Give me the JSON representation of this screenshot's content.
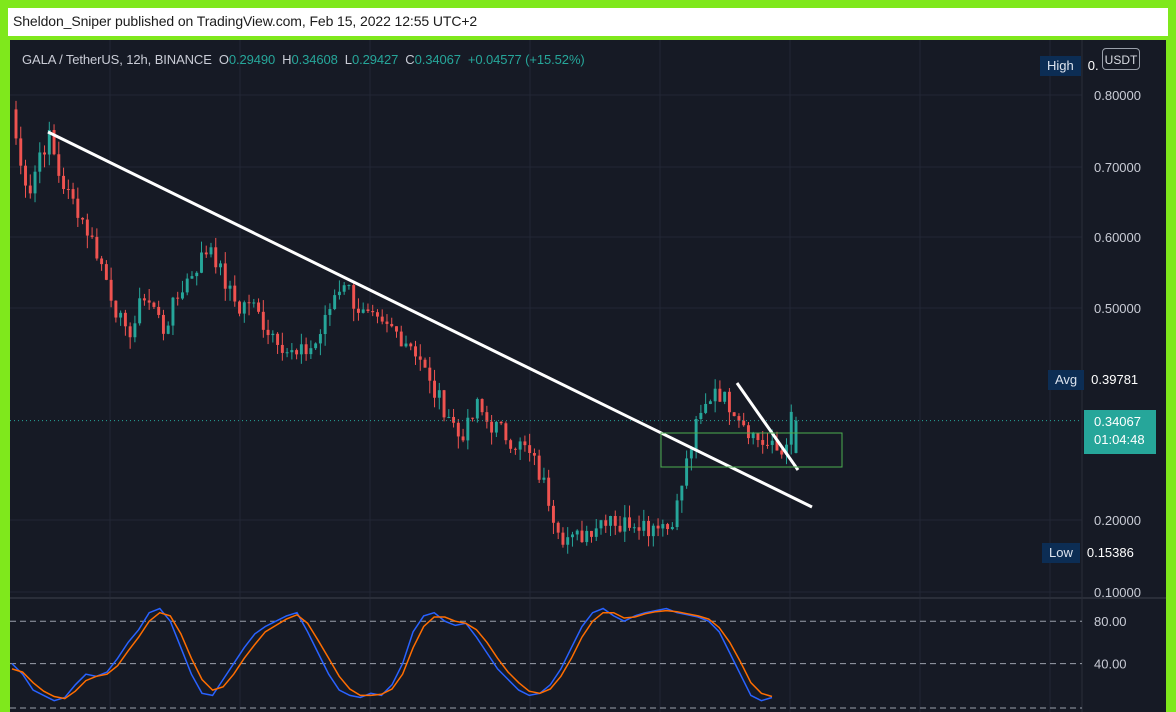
{
  "header": {
    "text": "Sheldon_Sniper published on TradingView.com, Feb 15, 2022 12:55 UTC+2"
  },
  "legend": {
    "symbol": "GALA / TetherUS, 12h, BINANCE",
    "o_label": "O",
    "o": "0.29490",
    "h_label": "H",
    "h": "0.34608",
    "l_label": "L",
    "l": "0.29427",
    "c_label": "C",
    "c": "0.34067",
    "change": "+0.04577 (+15.52%)"
  },
  "currency_button": "USDT",
  "markers": {
    "high_label": "High",
    "high_value": "0.",
    "avg_label": "Avg",
    "avg_value": "0.39781",
    "low_label": "Low",
    "low_value": "0.15386",
    "last_price": "0.34067",
    "countdown": "01:04:48"
  },
  "colors": {
    "up": "#26a69a",
    "down": "#ef5350",
    "background": "#161a25",
    "stoch_k": "#2962ff",
    "stoch_d": "#ff6d00",
    "frame": "#7fe81c"
  },
  "chart_data": [
    {
      "type": "candlestick",
      "symbol": "GALA / TetherUS",
      "interval": "12h",
      "exchange": "BINANCE",
      "y_ticks": [
        "0.80000",
        "0.70000",
        "0.60000",
        "0.50000",
        "0.20000",
        "0.10000"
      ],
      "ylim": [
        0.09,
        0.84
      ],
      "last": {
        "open": 0.2949,
        "high": 0.34608,
        "low": 0.29427,
        "close": 0.34067
      },
      "high_marker": 0.84,
      "avg": 0.39781,
      "low": 0.15386,
      "path_closes": [
        0.78,
        0.7,
        0.67,
        0.72,
        0.74,
        0.69,
        0.66,
        0.64,
        0.61,
        0.58,
        0.54,
        0.5,
        0.46,
        0.48,
        0.52,
        0.5,
        0.47,
        0.5,
        0.53,
        0.55,
        0.57,
        0.59,
        0.55,
        0.52,
        0.5,
        0.51,
        0.49,
        0.47,
        0.46,
        0.44,
        0.43,
        0.44,
        0.45,
        0.48,
        0.52,
        0.54,
        0.51,
        0.49,
        0.48,
        0.47,
        0.47,
        0.46,
        0.45,
        0.43,
        0.39,
        0.37,
        0.35,
        0.32,
        0.33,
        0.36,
        0.34,
        0.33,
        0.32,
        0.31,
        0.3,
        0.28,
        0.25,
        0.21,
        0.18,
        0.17,
        0.18,
        0.19,
        0.2,
        0.21,
        0.19,
        0.2,
        0.2,
        0.19,
        0.2,
        0.19,
        0.22,
        0.28,
        0.33,
        0.36,
        0.39,
        0.37,
        0.36,
        0.34,
        0.32,
        0.31,
        0.3,
        0.295,
        0.341
      ],
      "trendlines": [
        {
          "from": [
            0.02,
            0.75
          ],
          "to": [
            0.69,
            0.22
          ]
        },
        {
          "from": [
            0.625,
            0.39
          ],
          "to": [
            0.675,
            0.28
          ]
        }
      ]
    },
    {
      "type": "line",
      "name": "stochastic",
      "y_ticks": [
        "80.00",
        "40.00"
      ],
      "ylim": [
        0,
        100
      ],
      "series": [
        {
          "values": [
            40,
            30,
            15,
            10,
            5,
            8,
            20,
            30,
            28,
            32,
            45,
            60,
            72,
            88,
            92,
            80,
            55,
            30,
            12,
            10,
            25,
            40,
            55,
            68,
            75,
            80,
            85,
            88,
            70,
            50,
            30,
            15,
            10,
            8,
            12,
            10,
            20,
            40,
            70,
            85,
            88,
            80,
            76,
            78,
            65,
            50,
            35,
            25,
            15,
            10,
            12,
            20,
            35,
            55,
            75,
            88,
            92,
            85,
            80,
            85,
            88,
            90,
            92,
            88,
            86,
            84,
            80,
            70,
            50,
            30,
            10,
            5,
            8
          ]
        },
        {
          "values": [
            35,
            32,
            22,
            14,
            9,
            7,
            14,
            24,
            28,
            30,
            38,
            52,
            65,
            80,
            88,
            85,
            68,
            45,
            25,
            15,
            18,
            30,
            45,
            58,
            70,
            76,
            82,
            86,
            78,
            62,
            45,
            28,
            16,
            10,
            10,
            11,
            16,
            30,
            55,
            75,
            84,
            84,
            80,
            78,
            72,
            60,
            45,
            32,
            22,
            14,
            12,
            16,
            28,
            45,
            65,
            80,
            88,
            88,
            83,
            84,
            87,
            89,
            90,
            89,
            87,
            85,
            82,
            74,
            60,
            42,
            22,
            12,
            9
          ]
        }
      ]
    }
  ]
}
